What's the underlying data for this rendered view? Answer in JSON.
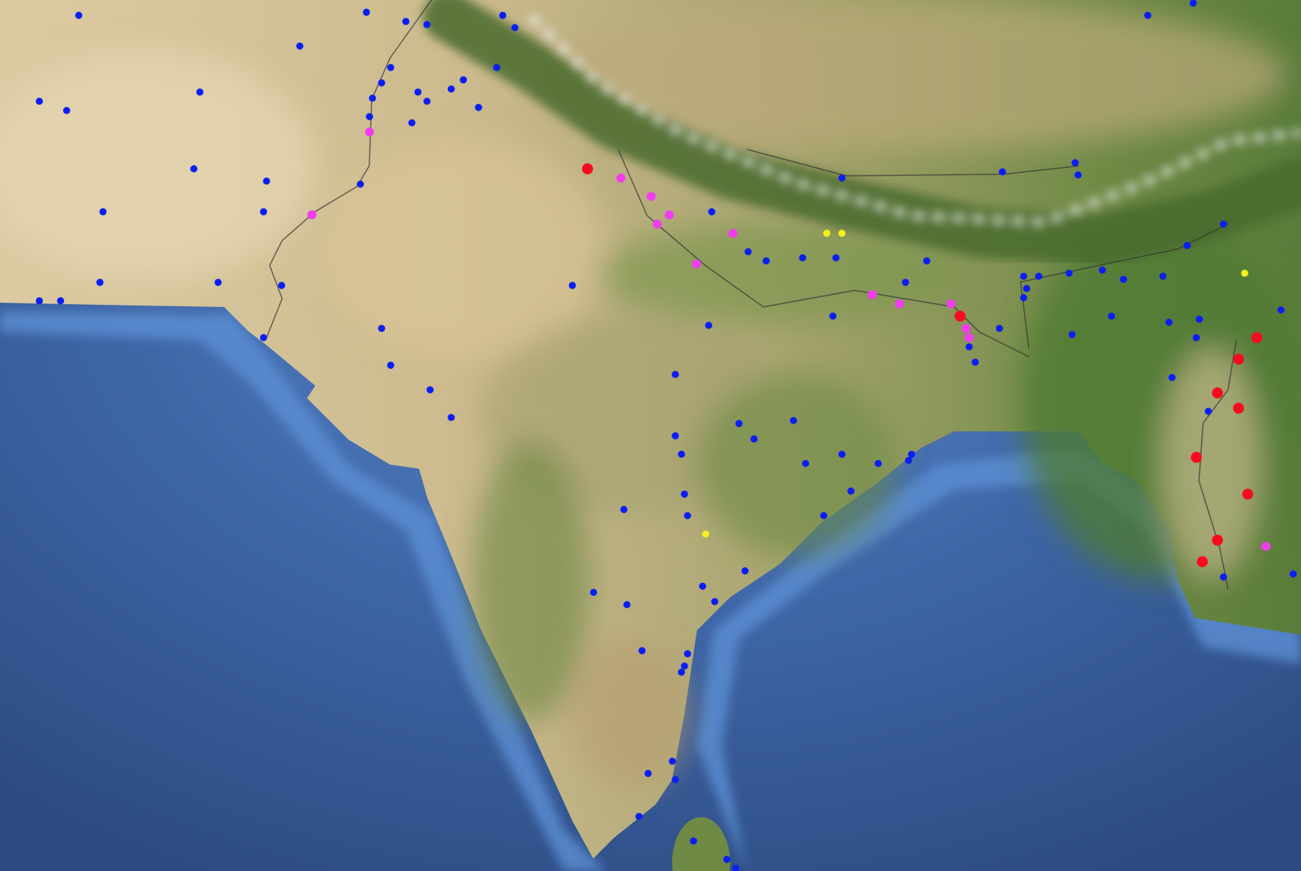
{
  "map": {
    "basemap": "satellite",
    "colors": {
      "ocean_deep": "#3a5a94",
      "ocean_shallow": "#5a8bd0",
      "desert": "#d8c7a0",
      "vegetation": "#5f7f3e",
      "snow": "#f2f2f2"
    },
    "marker_groups": [
      {
        "color": "#0a1ef5",
        "size": "small",
        "points": [
          [
            60.8,
            35.4
          ],
          [
            70.3,
            35.5
          ],
          [
            71.6,
            35.2
          ],
          [
            72.3,
            35.1
          ],
          [
            74.8,
            35.4
          ],
          [
            75.2,
            35.0
          ],
          [
            68.1,
            34.4
          ],
          [
            71.1,
            33.7
          ],
          [
            74.6,
            33.7
          ],
          [
            73.5,
            33.3
          ],
          [
            73.1,
            33.0
          ],
          [
            72.0,
            32.9
          ],
          [
            70.8,
            33.2
          ],
          [
            72.3,
            32.6
          ],
          [
            70.5,
            32.7
          ],
          [
            70.4,
            32.1
          ],
          [
            71.8,
            31.9
          ],
          [
            74.0,
            32.4
          ],
          [
            64.8,
            32.9
          ],
          [
            59.5,
            32.6
          ],
          [
            60.4,
            32.3
          ],
          [
            64.6,
            30.4
          ],
          [
            67.0,
            30.0
          ],
          [
            70.1,
            29.9
          ],
          [
            61.6,
            29.0
          ],
          [
            66.9,
            29.0
          ],
          [
            61.5,
            26.7
          ],
          [
            65.4,
            26.7
          ],
          [
            67.5,
            26.6
          ],
          [
            59.5,
            26.1
          ],
          [
            60.2,
            26.1
          ],
          [
            66.9,
            24.9
          ],
          [
            70.8,
            25.2
          ],
          [
            71.1,
            24.0
          ],
          [
            72.4,
            23.2
          ],
          [
            73.1,
            22.3
          ],
          [
            77.1,
            26.6
          ],
          [
            81.7,
            29.0
          ],
          [
            82.9,
            27.7
          ],
          [
            83.5,
            27.4
          ],
          [
            84.7,
            27.5
          ],
          [
            85.8,
            27.5
          ],
          [
            88.8,
            27.4
          ],
          [
            88.1,
            26.7
          ],
          [
            86.0,
            30.1
          ],
          [
            91.3,
            30.3
          ],
          [
            93.7,
            30.6
          ],
          [
            93.8,
            30.2
          ],
          [
            98.6,
            28.6
          ],
          [
            97.4,
            27.9
          ],
          [
            92.0,
            26.9
          ],
          [
            92.5,
            26.9
          ],
          [
            93.5,
            27.0
          ],
          [
            94.6,
            27.1
          ],
          [
            95.3,
            26.8
          ],
          [
            96.6,
            26.9
          ],
          [
            92.1,
            26.5
          ],
          [
            92.0,
            26.2
          ],
          [
            85.7,
            25.6
          ],
          [
            81.6,
            25.3
          ],
          [
            91.2,
            25.2
          ],
          [
            90.2,
            24.6
          ],
          [
            90.4,
            24.1
          ],
          [
            93.6,
            25.0
          ],
          [
            94.9,
            25.6
          ],
          [
            96.8,
            25.4
          ],
          [
            97.8,
            25.5
          ],
          [
            97.7,
            24.9
          ],
          [
            100.5,
            25.8
          ],
          [
            96.9,
            23.6
          ],
          [
            98.1,
            22.5
          ],
          [
            98.6,
            17.1
          ],
          [
            100.9,
            17.2
          ],
          [
            80.5,
            23.7
          ],
          [
            82.6,
            22.1
          ],
          [
            84.4,
            22.2
          ],
          [
            83.1,
            21.6
          ],
          [
            80.5,
            21.7
          ],
          [
            80.7,
            21.1
          ],
          [
            84.8,
            20.8
          ],
          [
            86.0,
            21.1
          ],
          [
            87.2,
            20.8
          ],
          [
            88.2,
            20.9
          ],
          [
            88.3,
            21.1
          ],
          [
            86.3,
            19.9
          ],
          [
            80.8,
            19.8
          ],
          [
            78.8,
            19.3
          ],
          [
            80.9,
            19.1
          ],
          [
            85.4,
            19.1
          ],
          [
            82.8,
            17.3
          ],
          [
            81.4,
            16.8
          ],
          [
            81.8,
            16.3
          ],
          [
            77.8,
            16.6
          ],
          [
            78.9,
            16.2
          ],
          [
            79.4,
            14.7
          ],
          [
            80.9,
            14.6
          ],
          [
            80.8,
            14.2
          ],
          [
            80.7,
            14.0
          ],
          [
            80.4,
            11.1
          ],
          [
            79.6,
            10.7
          ],
          [
            80.5,
            10.5
          ],
          [
            79.3,
            9.3
          ],
          [
            81.1,
            8.5
          ],
          [
            82.2,
            7.9
          ],
          [
            82.5,
            7.6
          ],
          [
            96.1,
            35.4
          ],
          [
            97.6,
            35.8
          ]
        ]
      },
      {
        "color": "#f23cf0",
        "size": "medium",
        "points": [
          [
            70.4,
            31.6
          ],
          [
            68.5,
            28.9
          ],
          [
            78.7,
            30.1
          ],
          [
            79.7,
            29.5
          ],
          [
            80.3,
            28.9
          ],
          [
            79.9,
            28.6
          ],
          [
            82.4,
            28.3
          ],
          [
            81.2,
            27.3
          ],
          [
            87.0,
            26.3
          ],
          [
            87.9,
            26.0
          ],
          [
            89.6,
            26.0
          ],
          [
            90.1,
            25.2
          ],
          [
            90.2,
            24.9
          ],
          [
            100.0,
            18.1
          ]
        ]
      },
      {
        "color": "#fa0a1e",
        "size": "large",
        "points": [
          [
            77.6,
            30.4
          ],
          [
            89.9,
            25.6
          ],
          [
            99.7,
            24.9
          ],
          [
            99.1,
            24.2
          ],
          [
            98.4,
            23.1
          ],
          [
            99.1,
            22.6
          ],
          [
            97.7,
            21.0
          ],
          [
            99.4,
            19.8
          ],
          [
            98.4,
            18.3
          ],
          [
            97.9,
            17.6
          ]
        ]
      },
      {
        "color": "#f5f01e",
        "size": "small",
        "points": [
          [
            85.5,
            28.3
          ],
          [
            86.0,
            28.3
          ],
          [
            99.3,
            27.0
          ],
          [
            81.5,
            18.5
          ]
        ]
      }
    ]
  }
}
